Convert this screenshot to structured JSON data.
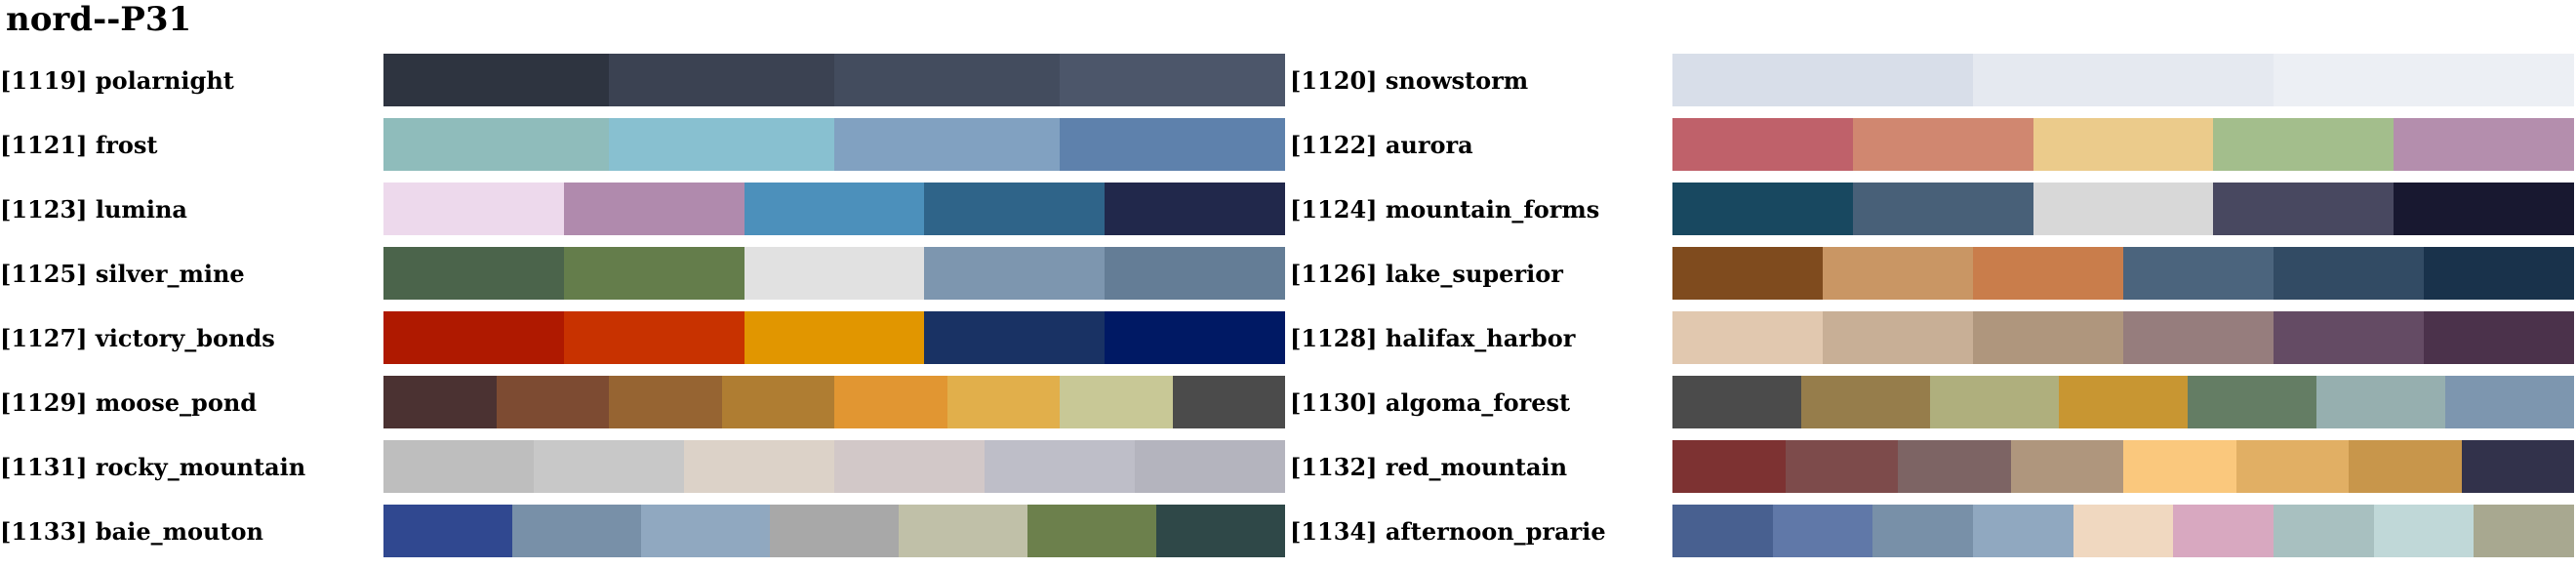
{
  "title": "nord--P31",
  "palettes": [
    {
      "label": "[1119] polarnight",
      "colors": [
        "#2e3440",
        "#3b4252",
        "#434c5e",
        "#4c566a"
      ]
    },
    {
      "label": "[1120] snowstorm",
      "colors": [
        "#d8dee9",
        "#e5e9f0",
        "#eceff4"
      ]
    },
    {
      "label": "[1121] frost",
      "colors": [
        "#8fbcbb",
        "#88c0d0",
        "#81a1c1",
        "#5e81ac"
      ]
    },
    {
      "label": "[1122] aurora",
      "colors": [
        "#bf616a",
        "#d08770",
        "#ebcb8b",
        "#a3be8c",
        "#b48ead"
      ]
    },
    {
      "label": "[1123] lumina",
      "colors": [
        "#edd9ec",
        "#b08aad",
        "#4c90bb",
        "#2f6489",
        "#21284b"
      ]
    },
    {
      "label": "[1124] mountain_forms",
      "colors": [
        "#184860",
        "#486078",
        "#d8d8d8",
        "#484860",
        "#181830"
      ]
    },
    {
      "label": "[1125] silver_mine",
      "colors": [
        "#4b644b",
        "#647d4b",
        "#e1e1e1",
        "#7d96af",
        "#647d96"
      ]
    },
    {
      "label": "[1126] lake_superior",
      "colors": [
        "#7f4b1e",
        "#c99664",
        "#c97d4b",
        "#4b647d",
        "#324b64",
        "#19324b"
      ]
    },
    {
      "label": "[1127] victory_bonds",
      "colors": [
        "#af1900",
        "#c83200",
        "#e19600",
        "#193264",
        "#001964"
      ]
    },
    {
      "label": "[1128] halifax_harbor",
      "colors": [
        "#e1c8af",
        "#c8af96",
        "#af967d",
        "#967d7d",
        "#644b64",
        "#4b324b"
      ]
    },
    {
      "label": "[1129] moose_pond",
      "colors": [
        "#4b3232",
        "#7d4b32",
        "#966432",
        "#af7d32",
        "#e19632",
        "#e1af4b",
        "#c8c896",
        "#4b4b4b"
      ]
    },
    {
      "label": "[1130] algoma_forest",
      "colors": [
        "#4b4b4b",
        "#967d4b",
        "#afaf7d",
        "#c89632",
        "#647d64",
        "#96afaf",
        "#7d96af"
      ]
    },
    {
      "label": "[1131] rocky_mountain",
      "colors": [
        "#bebebe",
        "#c8c8c8",
        "#dcd2c8",
        "#d2c8c8",
        "#bebec8",
        "#b4b4be"
      ]
    },
    {
      "label": "[1132] red_mountain",
      "colors": [
        "#7d3232",
        "#7d4b4b",
        "#7d6464",
        "#af967d",
        "#fac87d",
        "#e1af64",
        "#c8964b",
        "#32324b"
      ]
    },
    {
      "label": "[1133] baie_mouton",
      "colors": [
        "#304890",
        "#7890a8",
        "#90a8c0",
        "#a8a8a8",
        "#c0c0a8",
        "#6c804c",
        "#2f4848"
      ]
    },
    {
      "label": "[1134] afternoon_prarie",
      "colors": [
        "#486090",
        "#6078a8",
        "#7890a8",
        "#90a8c0",
        "#f0d8c0",
        "#d8a8c0",
        "#a8c0c0",
        "#c0d8d8",
        "#a8a890"
      ]
    }
  ]
}
